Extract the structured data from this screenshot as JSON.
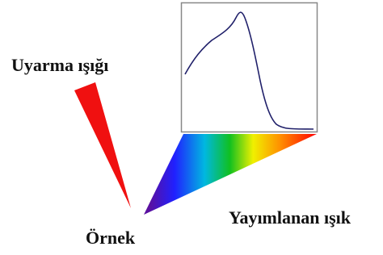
{
  "labels": {
    "excitation": "Uyarma ışığı",
    "sample": "Örnek",
    "emission": "Yayımlanan ışık"
  }
}
